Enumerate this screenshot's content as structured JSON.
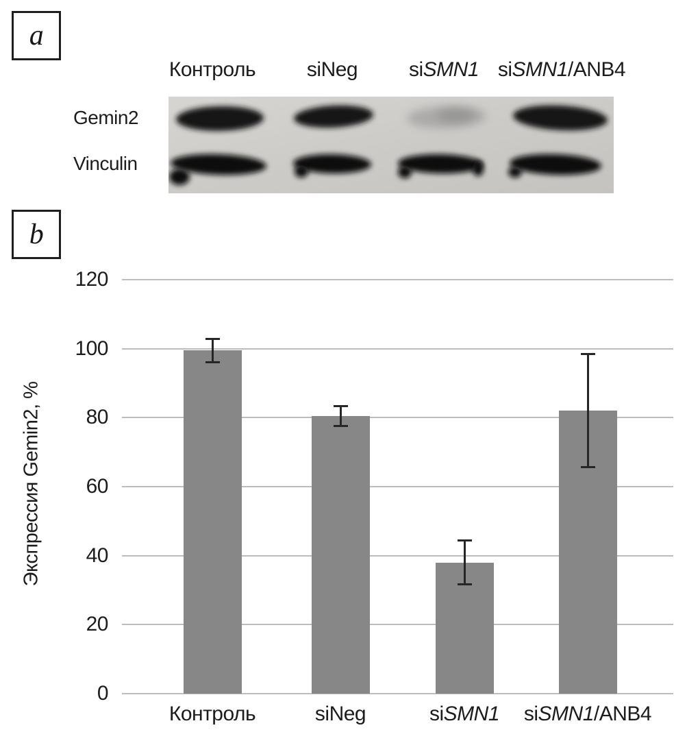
{
  "figure": {
    "panel_a_tag": "a",
    "panel_b_tag": "b"
  },
  "panel_a": {
    "row_labels": [
      "Gemin2",
      "Vinculin"
    ],
    "lane_labels": [
      {
        "parts": [
          {
            "t": "Контроль"
          }
        ]
      },
      {
        "parts": [
          {
            "t": "siNeg"
          }
        ]
      },
      {
        "parts": [
          {
            "t": "si"
          },
          {
            "t": "SMN1",
            "italic": true
          }
        ]
      },
      {
        "parts": [
          {
            "t": "si"
          },
          {
            "t": "SMN1",
            "italic": true
          },
          {
            "t": "/ANB4"
          }
        ]
      }
    ],
    "blot_bands": {
      "gemin2": [
        "dark",
        "dark",
        "faint",
        "dark"
      ],
      "vinculin": [
        "dark",
        "dark",
        "dark",
        "dark"
      ]
    }
  },
  "chart_data": {
    "type": "bar",
    "title": "",
    "xlabel": "",
    "ylabel": "Экспрессия Gemin2, %",
    "ylim": [
      0,
      120
    ],
    "yticks": [
      0,
      20,
      40,
      60,
      80,
      100,
      120
    ],
    "grid": true,
    "legend": null,
    "bar_color": "#878787",
    "categories": [
      "Контроль",
      "siNeg",
      "siSMN1",
      "siSMN1/ANB4"
    ],
    "categories_rich": [
      {
        "parts": [
          {
            "t": "Контроль"
          }
        ]
      },
      {
        "parts": [
          {
            "t": "siNeg"
          }
        ]
      },
      {
        "parts": [
          {
            "t": "si"
          },
          {
            "t": "SMN1",
            "italic": true
          }
        ]
      },
      {
        "parts": [
          {
            "t": "si"
          },
          {
            "t": "SMN1",
            "italic": true
          },
          {
            "t": "/ANB4"
          }
        ]
      }
    ],
    "values": [
      99.5,
      80.5,
      38,
      82
    ],
    "errors": [
      3.5,
      3,
      6.5,
      16.5
    ]
  },
  "colors": {
    "text": "#1c1c1c",
    "grid_line": "#bdbdbd",
    "bar": "#878787",
    "error_bar": "#262626",
    "blot_background": "#cdcbc8",
    "band_dark": "#121212",
    "band_faint": "#8d8d8d"
  }
}
